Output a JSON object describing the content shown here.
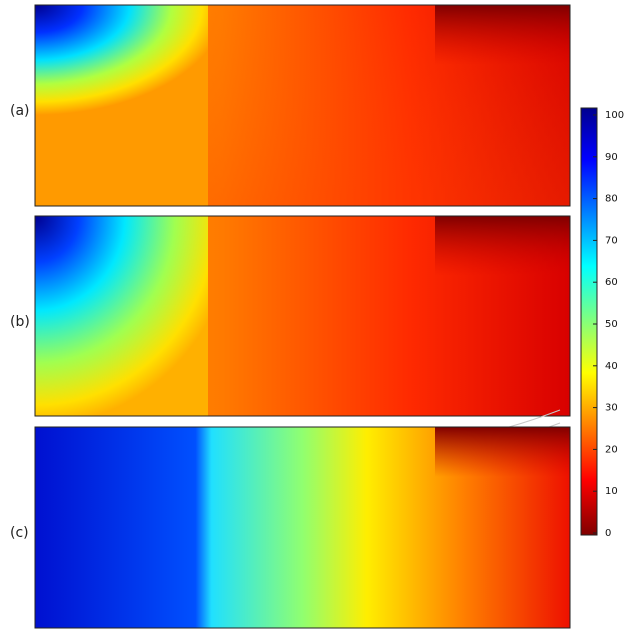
{
  "panels": [
    {
      "label": "(a)"
    },
    {
      "label": "(b)"
    },
    {
      "label": "(c)"
    }
  ],
  "colorbar": {
    "lim": [
      0,
      100
    ],
    "ticks": [
      0,
      10,
      20,
      30,
      40,
      50,
      60,
      70,
      80,
      90,
      100
    ]
  }
}
